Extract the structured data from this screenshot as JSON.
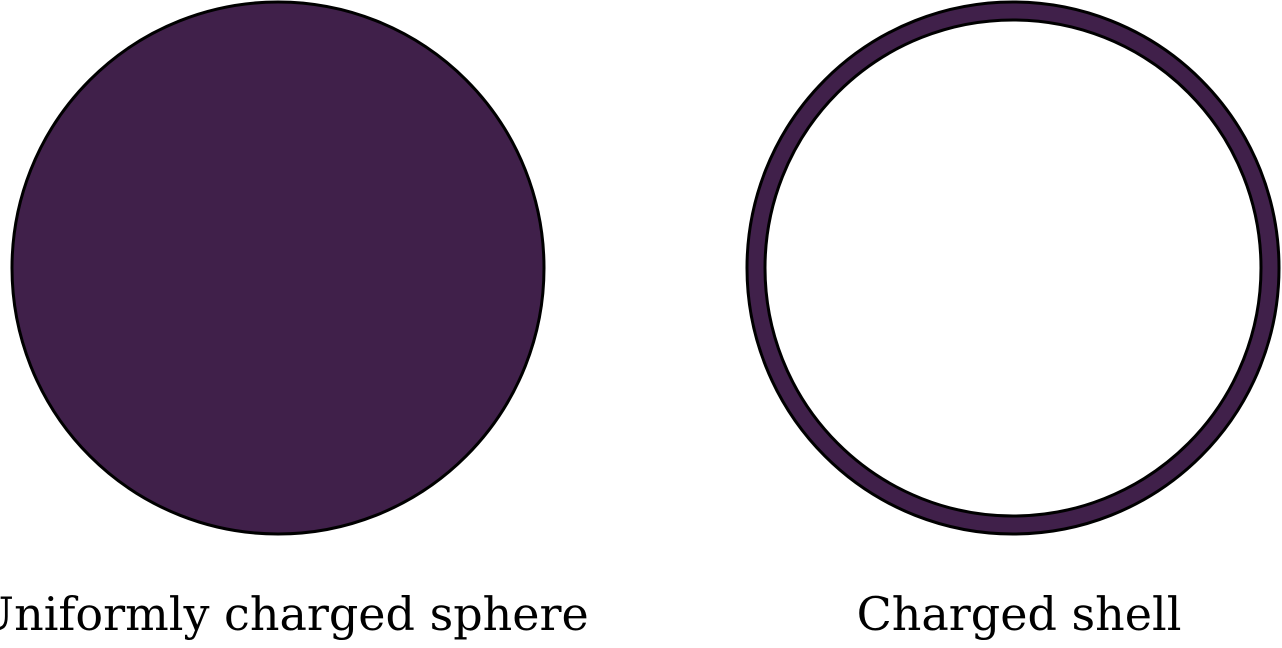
{
  "colors": {
    "fill": "#40204a",
    "stroke": "#000000",
    "background": "#ffffff"
  },
  "diagram": {
    "solid_sphere": {
      "caption": "Uniformly charged sphere"
    },
    "shell": {
      "caption": "Charged shell"
    }
  }
}
